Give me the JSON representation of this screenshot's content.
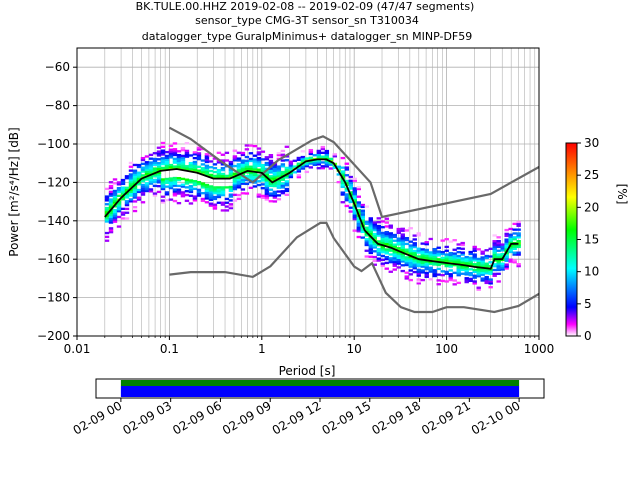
{
  "title_lines": [
    "BK.TULE.00.HHZ   2019-02-08 -- 2019-02-09  (47/47 segments)",
    "sensor_type CMG-3T sensor_sn T310034",
    "datalogger_type GuralpMinimus+ datalogger_sn MINP-DF59"
  ],
  "chart_data": {
    "type": "heatmap",
    "xlabel": "Period [s]",
    "ylabel": "Power [m²/s⁴/Hz] [dB]",
    "x_scale": "log",
    "xlim": [
      0.01,
      1000
    ],
    "ylim": [
      -200,
      -50
    ],
    "grid": true,
    "x_ticks": [
      0.01,
      0.1,
      1,
      10,
      100,
      1000
    ],
    "x_tick_labels": [
      "0.01",
      "0.1",
      "1",
      "10",
      "100",
      "1000"
    ],
    "y_ticks": [
      -200,
      -180,
      -160,
      -140,
      -120,
      -100,
      -80,
      -60
    ],
    "y_tick_labels": [
      "−200",
      "−180",
      "−160",
      "−140",
      "−120",
      "−100",
      "−80",
      "−60"
    ],
    "colorbar": {
      "label": "[%]",
      "range": [
        0,
        30
      ],
      "ticks": [
        0,
        5,
        10,
        15,
        20,
        25,
        30
      ],
      "tick_labels": [
        "0",
        "5",
        "10",
        "15",
        "20",
        "25",
        "30"
      ],
      "colormap": [
        "#ffffff",
        "#ff00ff",
        "#0000ff",
        "#00ffff",
        "#00ff00",
        "#ffff00",
        "#ff8000",
        "#ff0000"
      ]
    },
    "noise_models": [
      {
        "id": "high",
        "color": "#696969",
        "x": [
          0.1,
          0.17,
          0.4,
          0.8,
          1.5,
          3.5,
          4.6,
          6,
          15,
          20,
          300,
          1000
        ],
        "y": [
          -91.5,
          -97.4,
          -110.5,
          -120,
          -108.5,
          -98,
          -96,
          -99,
          -120,
          -138,
          -126,
          -112
        ]
      },
      {
        "id": "low",
        "color": "#696969",
        "x": [
          0.1,
          0.17,
          0.4,
          0.8,
          1.24,
          2.4,
          4.3,
          5.0,
          6,
          10,
          12,
          15.6,
          22,
          32,
          45,
          70,
          100,
          154,
          328,
          600,
          1000
        ],
        "y": [
          -168,
          -166.7,
          -166.7,
          -169.2,
          -163.7,
          -148.6,
          -141.1,
          -141.1,
          -149,
          -163.8,
          -166.2,
          -162.1,
          -177.5,
          -185,
          -187.5,
          -187.5,
          -185,
          -185,
          -187.5,
          -184.4,
          -178
        ]
      }
    ],
    "mean_curve": {
      "color": "#000000",
      "x": [
        0.02,
        0.03,
        0.05,
        0.08,
        0.12,
        0.2,
        0.3,
        0.45,
        0.7,
        1.0,
        1.3,
        2.0,
        3.0,
        4.0,
        5.0,
        6.0,
        8.0,
        10,
        13,
        18,
        25,
        35,
        50,
        70,
        100,
        150,
        200,
        300,
        330,
        400,
        500,
        600
      ],
      "y": [
        -138,
        -128,
        -118,
        -114,
        -113,
        -115,
        -118,
        -118,
        -114,
        -115,
        -120,
        -115,
        -109,
        -108,
        -108,
        -110,
        -120,
        -131,
        -145,
        -152,
        -154,
        -157,
        -160,
        -161,
        -162,
        -163,
        -164,
        -165,
        -160,
        -160,
        -152,
        -152
      ]
    },
    "coverage": {
      "start_label": "02-09 00",
      "end_label": "02-10 00",
      "tick_labels": [
        "02-09 00",
        "02-09 03",
        "02-09 06",
        "02-09 09",
        "02-09 12",
        "02-09 15",
        "02-09 18",
        "02-09 21",
        "02-10 00"
      ],
      "tick_hours": [
        0,
        3,
        6,
        9,
        12,
        15,
        18,
        21,
        24
      ],
      "range_hours": [
        -1.5,
        25.5
      ],
      "data_hours": [
        0,
        24
      ],
      "colors": [
        "#008000",
        "#0000ff"
      ]
    }
  }
}
